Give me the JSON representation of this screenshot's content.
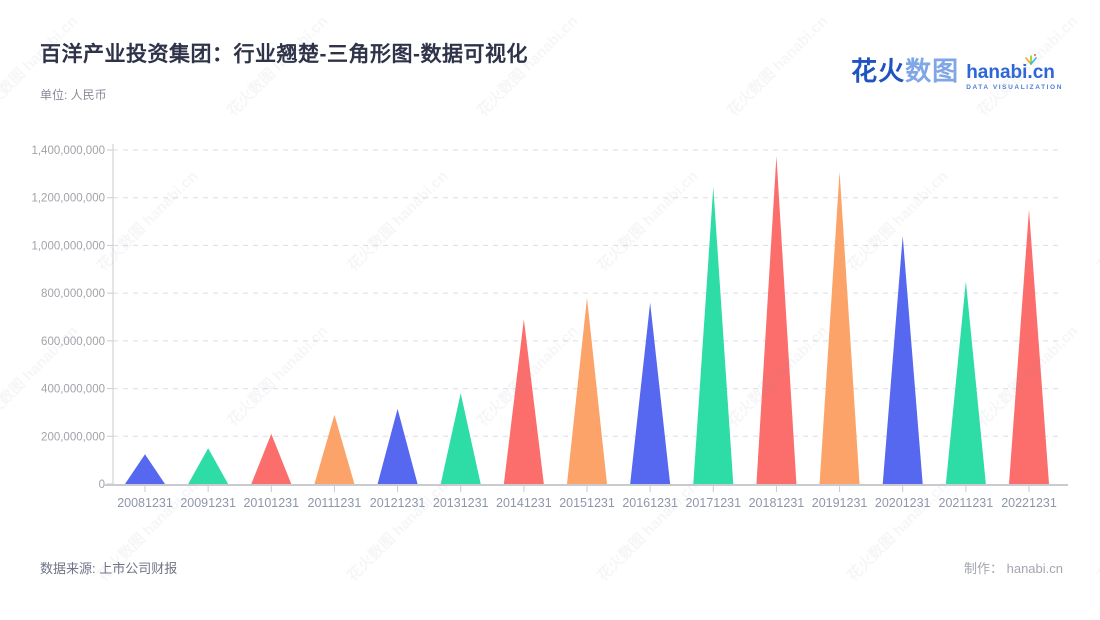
{
  "header": {
    "title": "百洋产业投资集团：行业翘楚-三角形图-数据可视化",
    "subtitle": "单位: 人民币"
  },
  "logo": {
    "brand_cn_bold": "花火",
    "brand_cn_light": "数图",
    "brand_en": "hanabi.cn",
    "brand_sub": "DATA VISUALIZATION"
  },
  "footer": {
    "source": "数据来源: 上市公司财报",
    "credit": "制作： hanabi.cn"
  },
  "watermark": {
    "text": "花火数图 hanabi.cn"
  },
  "colors": {
    "palette": [
      "#5668F0",
      "#2EDCA5",
      "#FB6E6B",
      "#FCA369"
    ],
    "axis": "#C9CBD1",
    "grid": "#DCDDE2",
    "y_label": "#A0A3A8",
    "x_label": "#8E96AA",
    "title": "#2F3349"
  },
  "chart_data": {
    "type": "bar",
    "variant": "triangle",
    "title": "百洋产业投资集团：行业翘楚-三角形图-数据可视化",
    "unit_label": "单位: 人民币",
    "xlabel": "",
    "ylabel": "人民币",
    "categories": [
      "20081231",
      "20091231",
      "20101231",
      "20111231",
      "20121231",
      "20131231",
      "20141231",
      "20151231",
      "20161231",
      "20171231",
      "20181231",
      "20191231",
      "20201231",
      "20211231",
      "20221231"
    ],
    "values": [
      125000000,
      150000000,
      210000000,
      290000000,
      315000000,
      380000000,
      690000000,
      780000000,
      760000000,
      1245000000,
      1375000000,
      1310000000,
      1040000000,
      850000000,
      1150000000
    ],
    "ylim": [
      0,
      1400000000
    ],
    "ytick_step": 200000000,
    "grid": true,
    "grid_style": "dashed",
    "legend": false
  }
}
